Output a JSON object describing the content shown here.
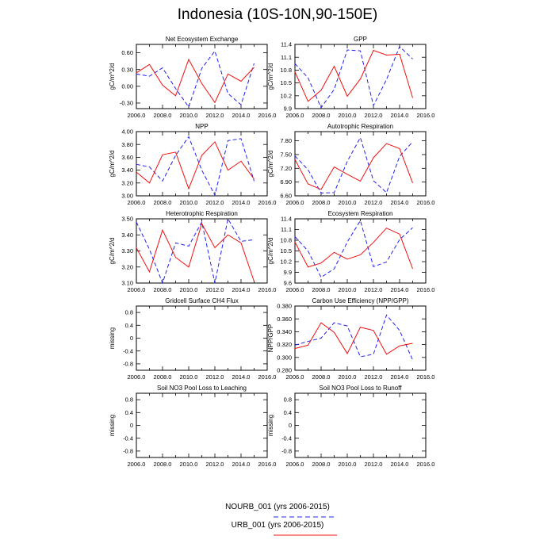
{
  "title": "Indonesia (10S-10N,90-150E)",
  "colors": {
    "urb": "#ee1111",
    "nourb": "#2222ee",
    "axis": "#000000"
  },
  "legend": {
    "nourb_label": "NOURB_001 (yrs 2006-2015)",
    "urb_label": "URB_001 (yrs 2006-2015)"
  },
  "chart_data": [
    {
      "type": "line",
      "title": "Net Ecosystem Exchange",
      "ylabel": "gC/m^2/d",
      "xlim": [
        2006,
        2016
      ],
      "ylim": [
        -0.4,
        0.75
      ],
      "yticks": [
        -0.3,
        0.0,
        0.3,
        0.6
      ],
      "ytick_labels": [
        "-0.30",
        "0.00",
        "0.30",
        "0.60"
      ],
      "x": [
        2006,
        2007,
        2008,
        2009,
        2010,
        2011,
        2012,
        2013,
        2014,
        2015
      ],
      "series": [
        {
          "name": "NOURB_001",
          "style": "dashed",
          "values": [
            0.22,
            0.18,
            0.33,
            -0.04,
            -0.37,
            0.32,
            0.63,
            -0.13,
            -0.33,
            0.41
          ]
        },
        {
          "name": "URB_001",
          "style": "solid",
          "values": [
            0.24,
            0.39,
            0.02,
            -0.17,
            0.48,
            0.05,
            -0.29,
            0.22,
            0.09,
            0.34
          ]
        }
      ]
    },
    {
      "type": "line",
      "title": "GPP",
      "ylabel": "gC/m^2/d",
      "xlim": [
        2006,
        2016
      ],
      "ylim": [
        9.9,
        11.4
      ],
      "yticks": [
        9.9,
        10.2,
        10.5,
        10.8,
        11.1,
        11.4
      ],
      "ytick_labels": [
        "9.9",
        "10.2",
        "10.5",
        "10.8",
        "11.1",
        "11.4"
      ],
      "x": [
        2006,
        2007,
        2008,
        2009,
        2010,
        2011,
        2012,
        2013,
        2014,
        2015
      ],
      "series": [
        {
          "name": "NOURB_001",
          "style": "dashed",
          "values": [
            10.95,
            10.62,
            9.92,
            10.35,
            11.27,
            11.25,
            9.97,
            10.58,
            11.35,
            11.06
          ]
        },
        {
          "name": "URB_001",
          "style": "solid",
          "values": [
            10.76,
            10.07,
            10.33,
            10.89,
            10.19,
            10.59,
            11.26,
            11.15,
            11.17,
            10.15
          ]
        }
      ]
    },
    {
      "type": "line",
      "title": "NPP",
      "ylabel": "gC/m^2/d",
      "xlim": [
        2006,
        2016
      ],
      "ylim": [
        3.0,
        4.0
      ],
      "yticks": [
        3.0,
        3.2,
        3.4,
        3.6,
        3.8,
        4.0
      ],
      "ytick_labels": [
        "3.00",
        "3.20",
        "3.40",
        "3.60",
        "3.80",
        "4.00"
      ],
      "x": [
        2006,
        2007,
        2008,
        2009,
        2010,
        2011,
        2012,
        2013,
        2014,
        2015
      ],
      "series": [
        {
          "name": "NOURB_001",
          "style": "dashed",
          "values": [
            3.49,
            3.45,
            3.23,
            3.63,
            3.92,
            3.4,
            3.01,
            3.86,
            3.89,
            3.23
          ]
        },
        {
          "name": "URB_001",
          "style": "solid",
          "values": [
            3.37,
            3.2,
            3.64,
            3.68,
            3.11,
            3.63,
            3.84,
            3.4,
            3.54,
            3.26
          ]
        }
      ]
    },
    {
      "type": "line",
      "title": "Autotrophic Respiration",
      "ylabel": "gC/m^2/d",
      "xlim": [
        2006,
        2016
      ],
      "ylim": [
        6.6,
        8.0
      ],
      "yticks": [
        6.6,
        6.9,
        7.2,
        7.5,
        7.8
      ],
      "ytick_labels": [
        "6.60",
        "6.90",
        "7.20",
        "7.50",
        "7.80"
      ],
      "x": [
        2006,
        2007,
        2008,
        2009,
        2010,
        2011,
        2012,
        2013,
        2014,
        2015
      ],
      "series": [
        {
          "name": "NOURB_001",
          "style": "dashed",
          "values": [
            7.47,
            7.17,
            6.66,
            6.67,
            7.35,
            7.87,
            6.93,
            6.67,
            7.46,
            7.78
          ]
        },
        {
          "name": "URB_001",
          "style": "solid",
          "values": [
            7.39,
            6.86,
            6.74,
            7.23,
            7.07,
            6.92,
            7.43,
            7.74,
            7.63,
            6.88
          ]
        }
      ]
    },
    {
      "type": "line",
      "title": "Heterotrophic Respiration",
      "ylabel": "gC/m^2/d",
      "xlim": [
        2006,
        2016
      ],
      "ylim": [
        3.1,
        3.5
      ],
      "yticks": [
        3.1,
        3.2,
        3.3,
        3.4,
        3.5
      ],
      "ytick_labels": [
        "3.10",
        "3.20",
        "3.30",
        "3.40",
        "3.50"
      ],
      "x": [
        2006,
        2007,
        2008,
        2009,
        2010,
        2011,
        2012,
        2013,
        2014,
        2015
      ],
      "series": [
        {
          "name": "NOURB_001",
          "style": "dashed",
          "values": [
            3.48,
            3.31,
            3.1,
            3.35,
            3.33,
            3.48,
            3.1,
            3.5,
            3.36,
            3.37
          ]
        },
        {
          "name": "URB_001",
          "style": "solid",
          "values": [
            3.32,
            3.17,
            3.43,
            3.26,
            3.2,
            3.47,
            3.32,
            3.4,
            3.35,
            3.11
          ]
        }
      ]
    },
    {
      "type": "line",
      "title": "Ecosystem Respiration",
      "ylabel": "gC/m^2/d",
      "xlim": [
        2006,
        2016
      ],
      "ylim": [
        9.6,
        11.4
      ],
      "yticks": [
        9.6,
        9.9,
        10.2,
        10.5,
        10.8,
        11.1,
        11.4
      ],
      "ytick_labels": [
        "9.6",
        "9.9",
        "10.2",
        "10.5",
        "10.8",
        "11.1",
        "11.4"
      ],
      "x": [
        2006,
        2007,
        2008,
        2009,
        2010,
        2011,
        2012,
        2013,
        2014,
        2015
      ],
      "series": [
        {
          "name": "NOURB_001",
          "style": "dashed",
          "values": [
            10.9,
            10.5,
            9.76,
            10.0,
            10.75,
            11.35,
            10.06,
            10.19,
            10.82,
            11.15
          ]
        },
        {
          "name": "URB_001",
          "style": "solid",
          "values": [
            10.75,
            10.05,
            10.16,
            10.46,
            10.27,
            10.39,
            10.74,
            11.14,
            10.97,
            10.0
          ]
        }
      ]
    },
    {
      "type": "line",
      "title": "Gridcell Surface CH4 Flux",
      "ylabel": "missing",
      "xlim": [
        2006,
        2016
      ],
      "ylim": [
        -1.0,
        1.0
      ],
      "yticks": [
        -0.8,
        -0.4,
        0.0,
        0.4,
        0.8
      ],
      "ytick_labels": [
        "-0.8",
        "-0.4",
        "0",
        "0.4",
        "0.8"
      ],
      "x": [],
      "series": []
    },
    {
      "type": "line",
      "title": "Carbon Use Efficiency (NPP/GPP)",
      "ylabel": "NPP/GPP",
      "xlim": [
        2006,
        2016
      ],
      "ylim": [
        0.28,
        0.38
      ],
      "yticks": [
        0.28,
        0.3,
        0.32,
        0.34,
        0.36,
        0.38
      ],
      "ytick_labels": [
        "0.280",
        "0.300",
        "0.320",
        "0.340",
        "0.360",
        "0.380"
      ],
      "x": [
        2006,
        2007,
        2008,
        2009,
        2010,
        2011,
        2012,
        2013,
        2014,
        2015
      ],
      "series": [
        {
          "name": "NOURB_001",
          "style": "dashed",
          "values": [
            0.319,
            0.325,
            0.33,
            0.354,
            0.349,
            0.301,
            0.305,
            0.366,
            0.342,
            0.296
          ]
        },
        {
          "name": "URB_001",
          "style": "solid",
          "values": [
            0.314,
            0.319,
            0.354,
            0.339,
            0.306,
            0.347,
            0.342,
            0.305,
            0.318,
            0.322
          ]
        }
      ]
    },
    {
      "type": "line",
      "title": "Soil NO3 Pool Loss to Leaching",
      "ylabel": "missing",
      "xlim": [
        2006,
        2016
      ],
      "ylim": [
        -1.0,
        1.0
      ],
      "yticks": [
        -0.8,
        -0.4,
        0.0,
        0.4,
        0.8
      ],
      "ytick_labels": [
        "-0.8",
        "-0.4",
        "0",
        "0.4",
        "0.8"
      ],
      "x": [],
      "series": []
    },
    {
      "type": "line",
      "title": "Soil NO3 Pool Loss to Runoff",
      "ylabel": "missing",
      "xlim": [
        2006,
        2016
      ],
      "ylim": [
        -1.0,
        1.0
      ],
      "yticks": [
        -0.8,
        -0.4,
        0.0,
        0.4,
        0.8
      ],
      "ytick_labels": [
        "-0.8",
        "-0.4",
        "0",
        "0.4",
        "0.8"
      ],
      "x": [],
      "series": []
    }
  ],
  "xtick_labels": [
    "2006.0",
    "2008.0",
    "2010.0",
    "2012.0",
    "2014.0",
    "2016.0"
  ]
}
